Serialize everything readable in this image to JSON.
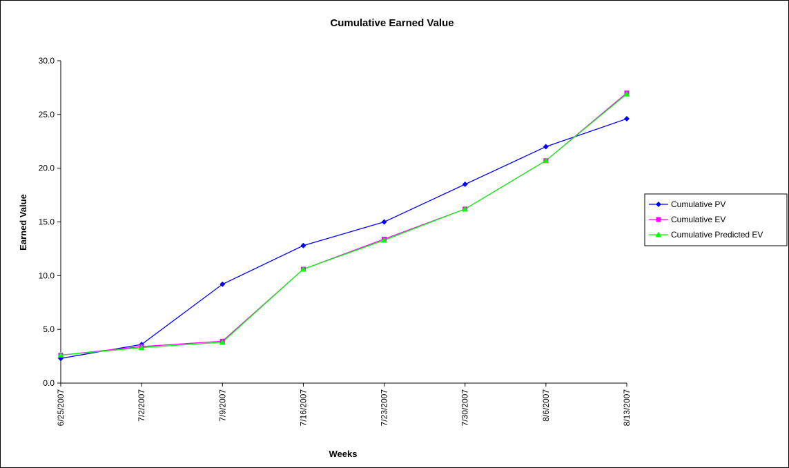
{
  "chart_data": {
    "type": "line",
    "title": "Cumulative Earned Value",
    "xlabel": "Weeks",
    "ylabel": "Earned Value",
    "ylim": [
      0,
      30
    ],
    "yticks": [
      "0.0",
      "5.0",
      "10.0",
      "15.0",
      "20.0",
      "25.0",
      "30.0"
    ],
    "categories": [
      "6/25/2007",
      "7/2/2007",
      "7/9/2007",
      "7/16/2007",
      "7/23/2007",
      "7/30/2007",
      "8/6/2007",
      "8/13/2007"
    ],
    "grid": false,
    "legend_position": "right",
    "series": [
      {
        "name": "Cumulative PV",
        "color": "#0000ff",
        "marker": "diamond",
        "values": [
          2.3,
          3.6,
          9.2,
          12.8,
          15.0,
          18.5,
          22.0,
          24.6
        ]
      },
      {
        "name": "Cumulative EV",
        "color": "#ff00ff",
        "marker": "square",
        "values": [
          2.6,
          3.4,
          3.9,
          10.6,
          13.4,
          16.2,
          20.7,
          27.0
        ]
      },
      {
        "name": "Cumulative Predicted EV",
        "color": "#00ff00",
        "marker": "triangle",
        "values": [
          2.6,
          3.3,
          3.8,
          10.6,
          13.3,
          16.2,
          20.7,
          26.9
        ]
      }
    ]
  }
}
